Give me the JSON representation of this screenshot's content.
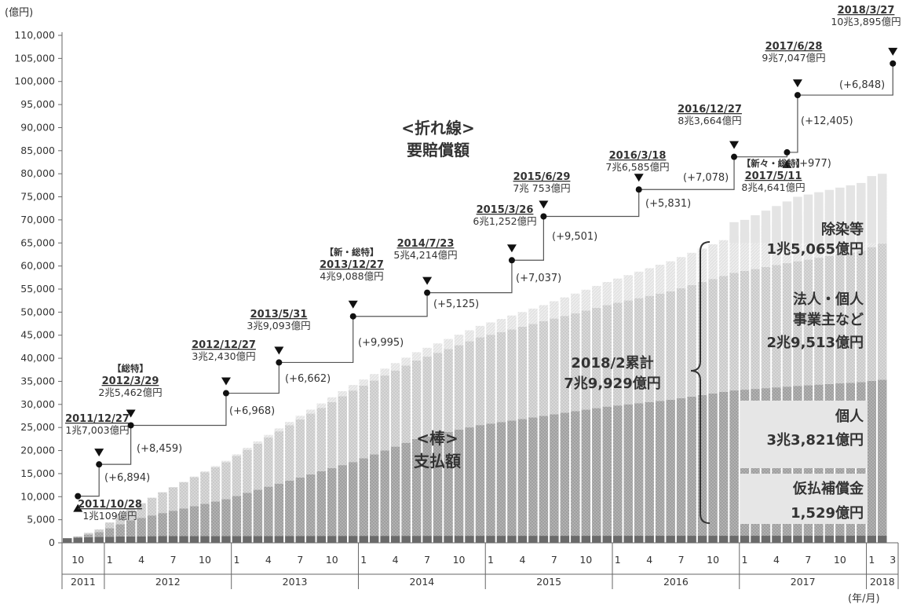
{
  "chart_data": {
    "type": "bar",
    "y_unit": "(億円)",
    "x_unit": "(年/月)",
    "ylim": [
      0,
      110000
    ],
    "yticks": [
      "0",
      "5,000",
      "10,000",
      "15,000",
      "20,000",
      "25,000",
      "30,000",
      "35,000",
      "40,000",
      "45,000",
      "50,000",
      "55,000",
      "60,000",
      "65,000",
      "70,000",
      "75,000",
      "80,000",
      "85,000",
      "90,000",
      "95,000",
      "100,000",
      "105,000",
      "110,000"
    ],
    "x_month_labels": [
      {
        "m": "2011-10",
        "label": "10"
      },
      {
        "m": "2012-01",
        "label": "1"
      },
      {
        "m": "2012-04",
        "label": "4"
      },
      {
        "m": "2012-07",
        "label": "7"
      },
      {
        "m": "2012-10",
        "label": "10"
      },
      {
        "m": "2013-01",
        "label": "1"
      },
      {
        "m": "2013-04",
        "label": "4"
      },
      {
        "m": "2013-07",
        "label": "7"
      },
      {
        "m": "2013-10",
        "label": "10"
      },
      {
        "m": "2014-01",
        "label": "1"
      },
      {
        "m": "2014-04",
        "label": "4"
      },
      {
        "m": "2014-07",
        "label": "7"
      },
      {
        "m": "2014-10",
        "label": "10"
      },
      {
        "m": "2015-01",
        "label": "1"
      },
      {
        "m": "2015-04",
        "label": "4"
      },
      {
        "m": "2015-07",
        "label": "7"
      },
      {
        "m": "2015-10",
        "label": "10"
      },
      {
        "m": "2016-01",
        "label": "1"
      },
      {
        "m": "2016-04",
        "label": "4"
      },
      {
        "m": "2016-07",
        "label": "7"
      },
      {
        "m": "2016-10",
        "label": "10"
      },
      {
        "m": "2017-01",
        "label": "1"
      },
      {
        "m": "2017-04",
        "label": "4"
      },
      {
        "m": "2017-07",
        "label": "7"
      },
      {
        "m": "2017-10",
        "label": "10"
      },
      {
        "m": "2018-01",
        "label": "1"
      },
      {
        "m": "2018-03",
        "label": "3"
      }
    ],
    "x_years": [
      {
        "label": "2011",
        "start": "2011-09",
        "end": "2011-12"
      },
      {
        "label": "2012",
        "start": "2012-01",
        "end": "2012-12"
      },
      {
        "label": "2013",
        "start": "2013-01",
        "end": "2013-12"
      },
      {
        "label": "2014",
        "start": "2014-01",
        "end": "2014-12"
      },
      {
        "label": "2015",
        "start": "2015-01",
        "end": "2015-12"
      },
      {
        "label": "2016",
        "start": "2016-01",
        "end": "2016-12"
      },
      {
        "label": "2017",
        "start": "2017-01",
        "end": "2017-12"
      },
      {
        "label": "2018",
        "start": "2018-01",
        "end": "2018-03"
      }
    ],
    "bar_series": [
      {
        "name": "仮払補償金",
        "color": "#6a6a6a"
      },
      {
        "name": "個人",
        "color": "#9a9a9a"
      },
      {
        "name": "法人・個人事業主など",
        "color": "#c4c4c4"
      },
      {
        "name": "除染等",
        "color": "#dcdcdc"
      }
    ],
    "bar_anchors": [
      {
        "month": "2011-09",
        "values": [
          1000,
          0,
          0,
          0
        ]
      },
      {
        "month": "2011-10",
        "values": [
          1100,
          200,
          100,
          0
        ]
      },
      {
        "month": "2011-12",
        "values": [
          1300,
          1000,
          600,
          0
        ]
      },
      {
        "month": "2012-03",
        "values": [
          1400,
          3500,
          2500,
          0
        ]
      },
      {
        "month": "2012-06",
        "values": [
          1450,
          5000,
          4500,
          0
        ]
      },
      {
        "month": "2012-12",
        "values": [
          1480,
          8000,
          8000,
          300
        ]
      },
      {
        "month": "2013-06",
        "values": [
          1500,
          12000,
          12000,
          700
        ]
      },
      {
        "month": "2013-12",
        "values": [
          1510,
          16000,
          15500,
          1200
        ]
      },
      {
        "month": "2014-06",
        "values": [
          1515,
          21000,
          17000,
          1800
        ]
      },
      {
        "month": "2014-12",
        "values": [
          1520,
          24000,
          19000,
          2500
        ]
      },
      {
        "month": "2015-06",
        "values": [
          1522,
          26000,
          20500,
          3500
        ]
      },
      {
        "month": "2015-12",
        "values": [
          1524,
          28000,
          22000,
          5000
        ]
      },
      {
        "month": "2016-06",
        "values": [
          1526,
          29500,
          23500,
          6500
        ]
      },
      {
        "month": "2016-12",
        "values": [
          1527,
          31500,
          25500,
          8000
        ]
      },
      {
        "month": "2017-06",
        "values": [
          1528,
          32500,
          27000,
          10000
        ]
      },
      {
        "month": "2017-12",
        "values": [
          1529,
          33300,
          28500,
          12500
        ]
      },
      {
        "month": "2018-02",
        "values": [
          1529,
          33821,
          29513,
          15065
        ]
      }
    ],
    "extra_bar_tops": [
      {
        "month": "2016-12",
        "value": 69500
      },
      {
        "month": "2017-01",
        "value": 70000
      },
      {
        "month": "2017-02",
        "value": 71000
      },
      {
        "month": "2017-03",
        "value": 72000
      },
      {
        "month": "2017-04",
        "value": 73000
      },
      {
        "month": "2017-05",
        "value": 74000
      },
      {
        "month": "2017-06",
        "value": 75000
      },
      {
        "month": "2017-07",
        "value": 75500
      },
      {
        "month": "2017-08",
        "value": 76000
      },
      {
        "month": "2017-09",
        "value": 76500
      },
      {
        "month": "2017-10",
        "value": 77000
      },
      {
        "month": "2017-11",
        "value": 77500
      },
      {
        "month": "2017-12",
        "value": 78000
      },
      {
        "month": "2018-01",
        "value": 79500
      },
      {
        "month": "2018-02",
        "value": 80000
      }
    ],
    "line_series": {
      "name": "要賠償額",
      "points": [
        {
          "date": "2011-10",
          "value": 10109,
          "date_label": "2011/10/28",
          "amount_label": "1兆109億円",
          "badge": "",
          "marker": "up",
          "delta": ""
        },
        {
          "date": "2011-12",
          "value": 17003,
          "date_label": "2011/12/27",
          "amount_label": "1兆7,003億円",
          "badge": "",
          "marker": "down",
          "delta": "(+6,894)"
        },
        {
          "date": "2012-03",
          "value": 25462,
          "date_label": "2012/3/29",
          "amount_label": "2兆5,462億円",
          "badge": "【総特】",
          "marker": "down",
          "delta": "(+8,459)"
        },
        {
          "date": "2012-12",
          "value": 32430,
          "date_label": "2012/12/27",
          "amount_label": "3兆2,430億円",
          "badge": "",
          "marker": "down",
          "delta": "(+6,968)"
        },
        {
          "date": "2013-05",
          "value": 39093,
          "date_label": "2013/5/31",
          "amount_label": "3兆9,093億円",
          "badge": "",
          "marker": "down",
          "delta": "(+6,662)"
        },
        {
          "date": "2013-12",
          "value": 49088,
          "date_label": "2013/12/27",
          "amount_label": "4兆9,088億円",
          "badge": "【新・総特】",
          "marker": "down",
          "delta": "(+9,995)"
        },
        {
          "date": "2014-07",
          "value": 54214,
          "date_label": "2014/7/23",
          "amount_label": "5兆4,214億円",
          "badge": "",
          "marker": "down",
          "delta": "(+5,125)"
        },
        {
          "date": "2015-03",
          "value": 61252,
          "date_label": "2015/3/26",
          "amount_label": "6兆1,252億円",
          "badge": "",
          "marker": "down",
          "delta": "(+7,037)"
        },
        {
          "date": "2015-06",
          "value": 70753,
          "date_label": "2015/6/29",
          "amount_label": "7兆 753億円",
          "badge": "",
          "marker": "down",
          "delta": "(+9,501)"
        },
        {
          "date": "2016-03",
          "value": 76585,
          "date_label": "2016/3/18",
          "amount_label": "7兆6,585億円",
          "badge": "",
          "marker": "down",
          "delta": "(+5,831)"
        },
        {
          "date": "2016-12",
          "value": 83664,
          "date_label": "2016/12/27",
          "amount_label": "8兆3,664億円",
          "badge": "",
          "marker": "down",
          "delta": "(+7,078)"
        },
        {
          "date": "2017-05",
          "value": 84641,
          "date_label": "2017/5/11",
          "amount_label": "8兆4,641億円",
          "badge": "【新々・総特】",
          "marker": "up",
          "delta": "(+977)"
        },
        {
          "date": "2017-06",
          "value": 97047,
          "date_label": "2017/6/28",
          "amount_label": "9兆7,047億円",
          "badge": "",
          "marker": "down",
          "delta": "(+12,405)"
        },
        {
          "date": "2018-03",
          "value": 103895,
          "date_label": "2018/3/27",
          "amount_label": "10兆3,895億円",
          "badge": "",
          "marker": "down",
          "delta": "(+6,848)"
        }
      ]
    },
    "annotations": {
      "line_title_1": "<折れ線>",
      "line_title_2": "要賠償額",
      "bar_title_1": "<棒>",
      "bar_title_2": "支払額",
      "total_1": "2018/2累計",
      "total_2": "7兆9,929億円",
      "seg_decon_1": "除染等",
      "seg_decon_2": "1兆5,065億円",
      "seg_corp_1": "法人・個人",
      "seg_corp_2": "事業主など",
      "seg_corp_3": "2兆9,513億円",
      "seg_indiv_1": "個人",
      "seg_indiv_2": "3兆3,821億円",
      "seg_prov_1": "仮払補償金",
      "seg_prov_2": "1,529億円"
    }
  }
}
